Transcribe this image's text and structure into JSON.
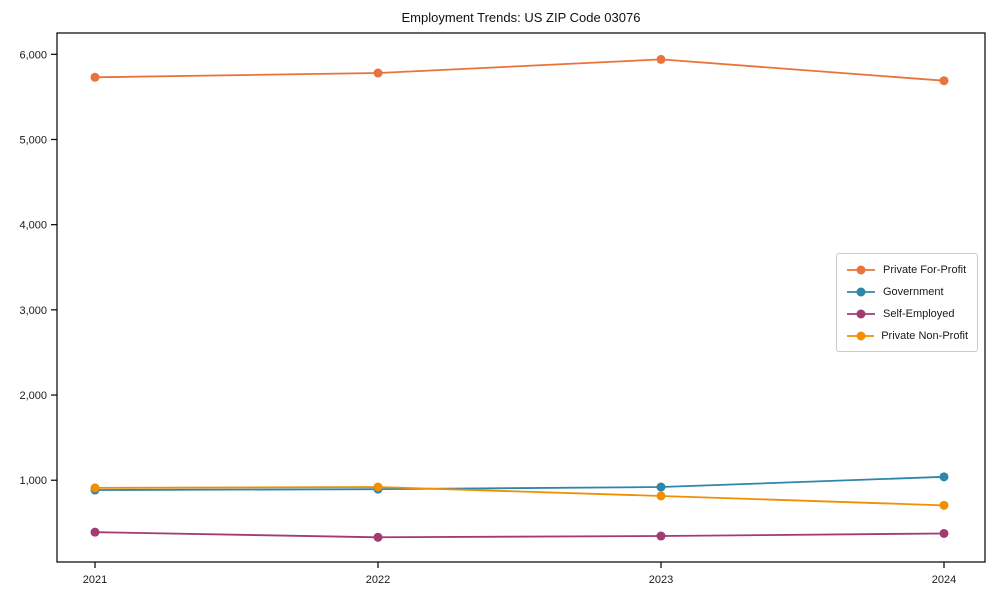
{
  "title": "Employment Trends: US ZIP Code 03076",
  "colors": {
    "background": "#ffffff",
    "axis": "#000000",
    "tick_text": "#1a1a1a",
    "legend_border": "#cccccc"
  },
  "chart_data": {
    "type": "line",
    "title": "Employment Trends: US ZIP Code 03076",
    "x": [
      "2021",
      "2022",
      "2023",
      "2024"
    ],
    "series": [
      {
        "name": "Private For-Profit",
        "color": "#E8743B",
        "values": [
          5730,
          5780,
          5940,
          5690
        ]
      },
      {
        "name": "Government",
        "color": "#2E86AB",
        "values": [
          885,
          895,
          920,
          1040
        ]
      },
      {
        "name": "Self-Employed",
        "color": "#A23B72",
        "values": [
          390,
          330,
          345,
          375
        ]
      },
      {
        "name": "Private Non-Profit",
        "color": "#F18F01",
        "values": [
          910,
          920,
          815,
          705
        ]
      }
    ],
    "xlabel": "",
    "ylabel": "",
    "ylim": [
      40,
      6250
    ],
    "yticks": [
      1000,
      2000,
      3000,
      4000,
      5000,
      6000
    ],
    "ytick_labels": [
      "1,000",
      "2,000",
      "3,000",
      "4,000",
      "5,000",
      "6,000"
    ],
    "grid": false,
    "legend_position": "center-right-inside",
    "marker": "circle"
  }
}
